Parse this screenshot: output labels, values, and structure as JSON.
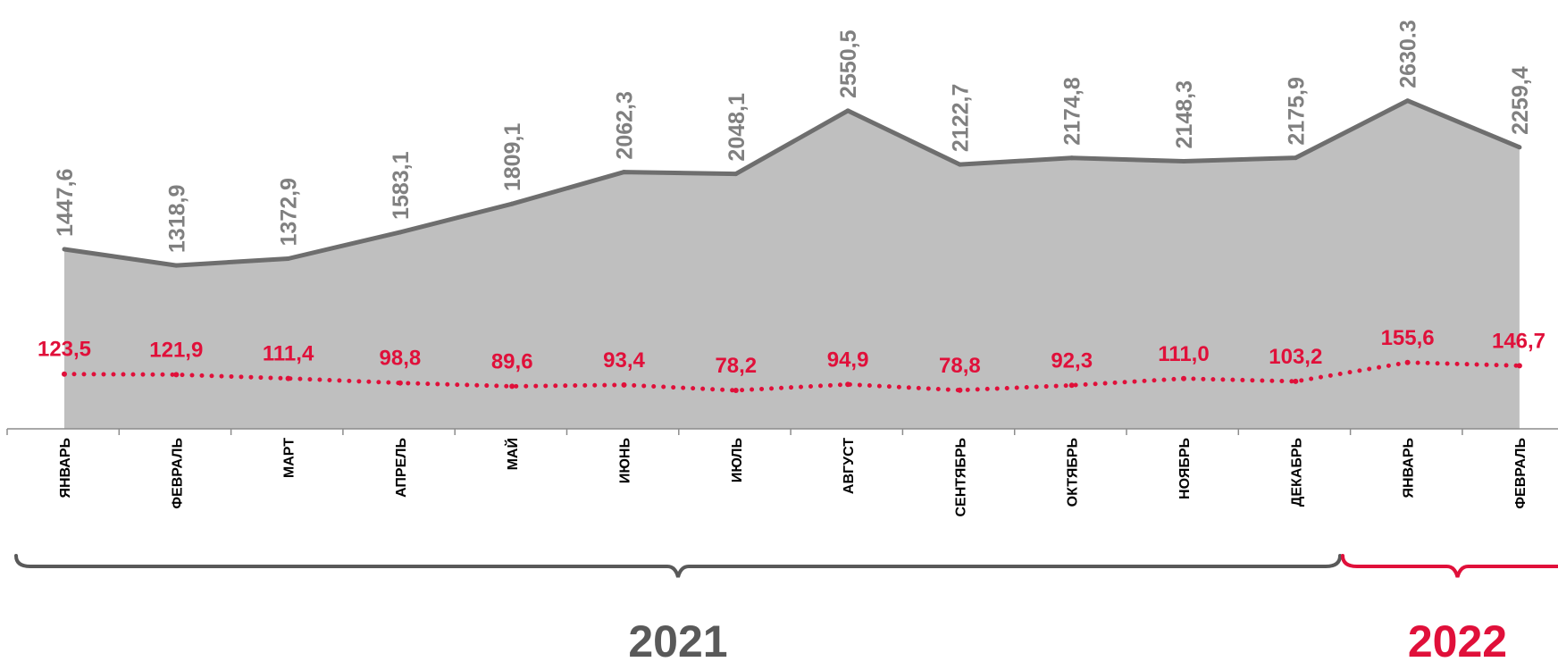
{
  "chart_data": {
    "type": "area",
    "categories": [
      "ЯНВАРЬ",
      "ФЕВРАЛЬ",
      "МАРТ",
      "АПРЕЛЬ",
      "МАЙ",
      "ИЮНЬ",
      "ИЮЛЬ",
      "АВГУСТ",
      "СЕНТЯБРЬ",
      "ОКТЯБРЬ",
      "НОЯБРЬ",
      "ДЕКАБРЬ",
      "ЯНВАРЬ",
      "ФЕВРАЛЬ"
    ],
    "series": [
      {
        "values": [
          1447.6,
          1318.9,
          1372.9,
          1583.1,
          1809.1,
          2062.3,
          2048.1,
          2550.5,
          2122.7,
          2174.8,
          2148.3,
          2175.9,
          2630.3,
          2259.4
        ],
        "labels": [
          "1447,6",
          "1318,9",
          "1372,9",
          "1583,1",
          "1809,1",
          "2062,3",
          "2048,1",
          "2550,5",
          "2122,7",
          "2174,8",
          "2148,3",
          "2175,9",
          "2630.3",
          "2259,4"
        ],
        "style": "area",
        "color": "#bfbfbf",
        "line_color": "#6e6e6e"
      },
      {
        "values": [
          123.5,
          121.9,
          111.4,
          98.8,
          89.6,
          93.4,
          78.2,
          94.9,
          78.8,
          92.3,
          111.0,
          103.2,
          155.6,
          146.7
        ],
        "labels": [
          "123,5",
          "121,9",
          "111,4",
          "98,8",
          "89,6",
          "93,4",
          "78,2",
          "94,9",
          "78,8",
          "92,3",
          "111,0",
          "103,2",
          "155,6",
          "146,7"
        ],
        "style": "dotted-line",
        "color": "#e0103a"
      }
    ],
    "groups": [
      {
        "label": "2021",
        "from": 0,
        "to": 11,
        "color": "#595959"
      },
      {
        "label": "2022",
        "from": 12,
        "to": 13,
        "color": "#e0103a"
      }
    ],
    "title": "",
    "xlabel": "",
    "ylabel": "",
    "grid": false,
    "legend": "none"
  }
}
